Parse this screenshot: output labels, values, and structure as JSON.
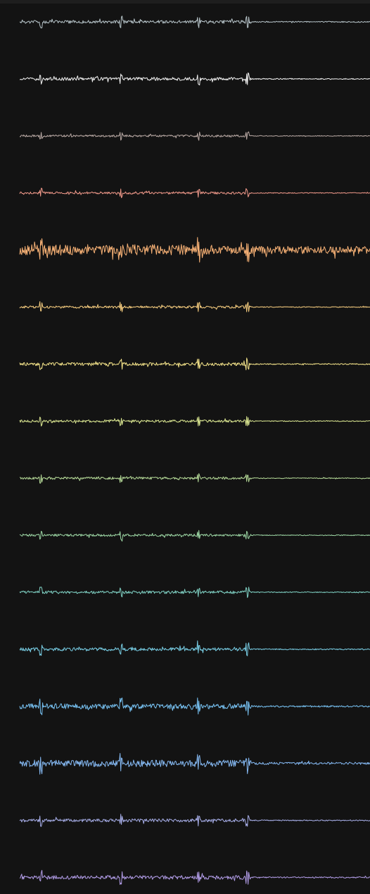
{
  "chart_data": {
    "type": "line",
    "title": "",
    "xlabel": "",
    "ylabel": "",
    "grid": false,
    "legend": "none",
    "x_range": [
      0,
      1
    ],
    "channels": [
      {
        "index": 0,
        "color": "#b6c3c8",
        "amplitude": 0.55,
        "noise": 0.3
      },
      {
        "index": 1,
        "color": "#f2f2f2",
        "amplitude": 0.55,
        "noise": 0.3
      },
      {
        "index": 2,
        "color": "#b8a8a3",
        "amplitude": 0.4,
        "noise": 0.25
      },
      {
        "index": 3,
        "color": "#f0998a",
        "amplitude": 0.45,
        "noise": 0.25
      },
      {
        "index": 4,
        "color": "#f8b276",
        "amplitude": 1.0,
        "noise": 0.7
      },
      {
        "index": 5,
        "color": "#f9cf80",
        "amplitude": 0.45,
        "noise": 0.25
      },
      {
        "index": 6,
        "color": "#f5e48a",
        "amplitude": 0.55,
        "noise": 0.3
      },
      {
        "index": 7,
        "color": "#dbe791",
        "amplitude": 0.45,
        "noise": 0.25
      },
      {
        "index": 8,
        "color": "#b7dc99",
        "amplitude": 0.45,
        "noise": 0.25
      },
      {
        "index": 9,
        "color": "#9cd6a4",
        "amplitude": 0.45,
        "noise": 0.25
      },
      {
        "index": 10,
        "color": "#7fd0c3",
        "amplitude": 0.5,
        "noise": 0.28
      },
      {
        "index": 11,
        "color": "#79cfe6",
        "amplitude": 0.6,
        "noise": 0.3
      },
      {
        "index": 12,
        "color": "#78c3f4",
        "amplitude": 0.8,
        "noise": 0.4
      },
      {
        "index": 13,
        "color": "#86baf4",
        "amplitude": 0.9,
        "noise": 0.55
      },
      {
        "index": 14,
        "color": "#a7aee8",
        "amplitude": 0.55,
        "noise": 0.3
      },
      {
        "index": 15,
        "color": "#b19ce6",
        "amplitude": 0.65,
        "noise": 0.35
      }
    ]
  }
}
